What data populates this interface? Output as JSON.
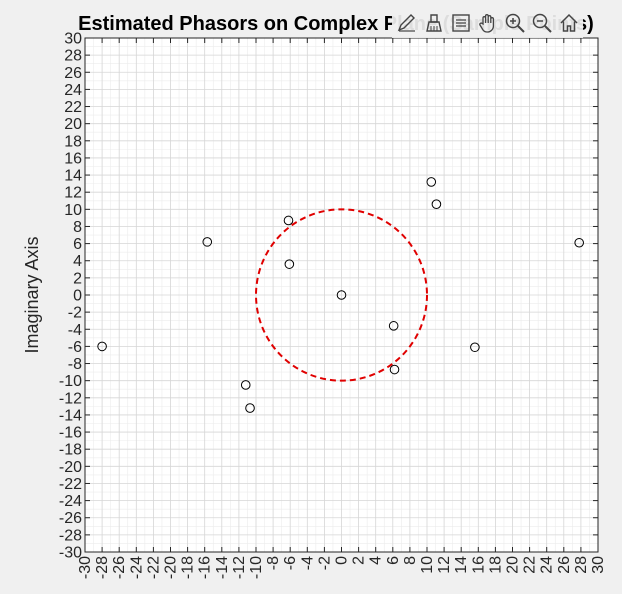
{
  "figure": {
    "background": "#f0f0f0",
    "toolbar": [
      {
        "name": "data-tips-icon",
        "label": "Data Tips"
      },
      {
        "name": "brush-icon",
        "label": "Brush"
      },
      {
        "name": "legend-icon",
        "label": "Legend"
      },
      {
        "name": "pan-icon",
        "label": "Pan"
      },
      {
        "name": "zoom-in-icon",
        "label": "Zoom In"
      },
      {
        "name": "zoom-out-icon",
        "label": "Zoom Out"
      },
      {
        "name": "home-icon",
        "label": "Restore View"
      }
    ]
  },
  "chart_data": {
    "type": "scatter",
    "title": "Estimated Phasors on Complex Plane (Sample Points)",
    "xlabel": "",
    "ylabel": "Imaginary Axis",
    "xlim": [
      -30,
      30
    ],
    "ylim": [
      -30,
      30
    ],
    "tick_step": 2,
    "grid": true,
    "minor_grid": true,
    "marker": "circle-open",
    "marker_color": "#000000",
    "points": [
      {
        "x": 0,
        "y": 0
      },
      {
        "x": -28,
        "y": -6
      },
      {
        "x": -15.7,
        "y": 6.2
      },
      {
        "x": -6.2,
        "y": 8.7
      },
      {
        "x": -6.1,
        "y": 3.6
      },
      {
        "x": -11.2,
        "y": -10.5
      },
      {
        "x": -10.7,
        "y": -13.2
      },
      {
        "x": 6.1,
        "y": -3.6
      },
      {
        "x": 6.2,
        "y": -8.7
      },
      {
        "x": 10.5,
        "y": 13.2
      },
      {
        "x": 11.1,
        "y": 10.6
      },
      {
        "x": 15.6,
        "y": -6.1
      },
      {
        "x": 27.8,
        "y": 6.1
      }
    ],
    "reference_circle": {
      "center": [
        0,
        0
      ],
      "radius": 10,
      "color": "#e00000",
      "style": "dashed"
    }
  }
}
